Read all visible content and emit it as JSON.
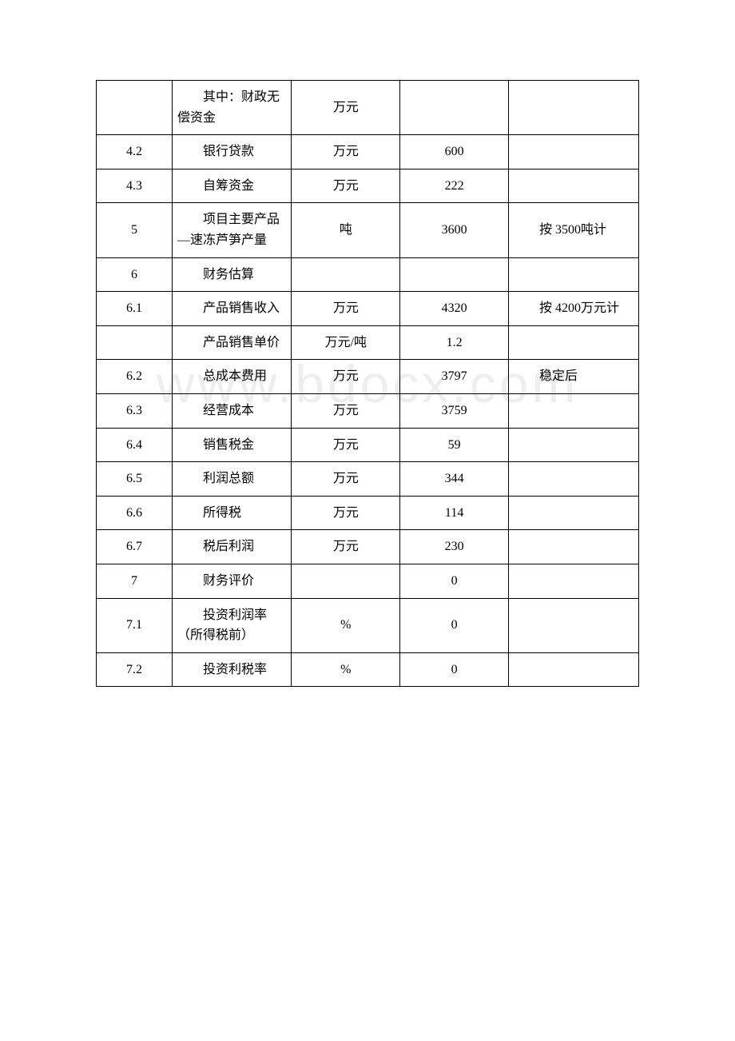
{
  "watermark": "www.bdocx.com",
  "table": {
    "border_color": "#000000",
    "background_color": "#ffffff",
    "text_color": "#000000",
    "font_size": 16,
    "column_widths_pct": [
      14,
      22,
      20,
      20,
      24
    ],
    "rows": [
      {
        "c1": "",
        "c2": "其中：财政无偿资金",
        "c3": "万元",
        "c4": "",
        "c5": ""
      },
      {
        "c1": "4.2",
        "c2": "银行贷款",
        "c3": "万元",
        "c4": "600",
        "c5": ""
      },
      {
        "c1": "4.3",
        "c2": "自筹资金",
        "c3": "万元",
        "c4": "222",
        "c5": ""
      },
      {
        "c1": "5",
        "c2": "项目主要产品—速冻芦笋产量",
        "c3": "吨",
        "c4": "3600",
        "c5": "按 3500吨计"
      },
      {
        "c1": "6",
        "c2": "财务估算",
        "c3": "",
        "c4": "",
        "c5": ""
      },
      {
        "c1": "6.1",
        "c2": "产品销售收入",
        "c3": "万元",
        "c4": "4320",
        "c5": "按 4200万元计"
      },
      {
        "c1": "",
        "c2": "产品销售单价",
        "c3": "万元/吨",
        "c4": "1.2",
        "c5": ""
      },
      {
        "c1": "6.2",
        "c2": "总成本费用",
        "c3": "万元",
        "c4": "3797",
        "c5": "稳定后"
      },
      {
        "c1": "6.3",
        "c2": "经营成本",
        "c3": "万元",
        "c4": "3759",
        "c5": ""
      },
      {
        "c1": "6.4",
        "c2": "销售税金",
        "c3": "万元",
        "c4": "59",
        "c5": ""
      },
      {
        "c1": "6.5",
        "c2": "利润总额",
        "c3": "万元",
        "c4": "344",
        "c5": ""
      },
      {
        "c1": "6.6",
        "c2": "所得税",
        "c3": "万元",
        "c4": "114",
        "c5": ""
      },
      {
        "c1": "6.7",
        "c2": "税后利润",
        "c3": "万元",
        "c4": "230",
        "c5": ""
      },
      {
        "c1": "7",
        "c2": "财务评价",
        "c3": "",
        "c4": "0",
        "c5": ""
      },
      {
        "c1": "7.1",
        "c2": "投资利润率（所得税前）",
        "c3": "%",
        "c4": "0",
        "c5": ""
      },
      {
        "c1": "7.2",
        "c2": "投资利税率",
        "c3": "%",
        "c4": "0",
        "c5": ""
      }
    ]
  }
}
